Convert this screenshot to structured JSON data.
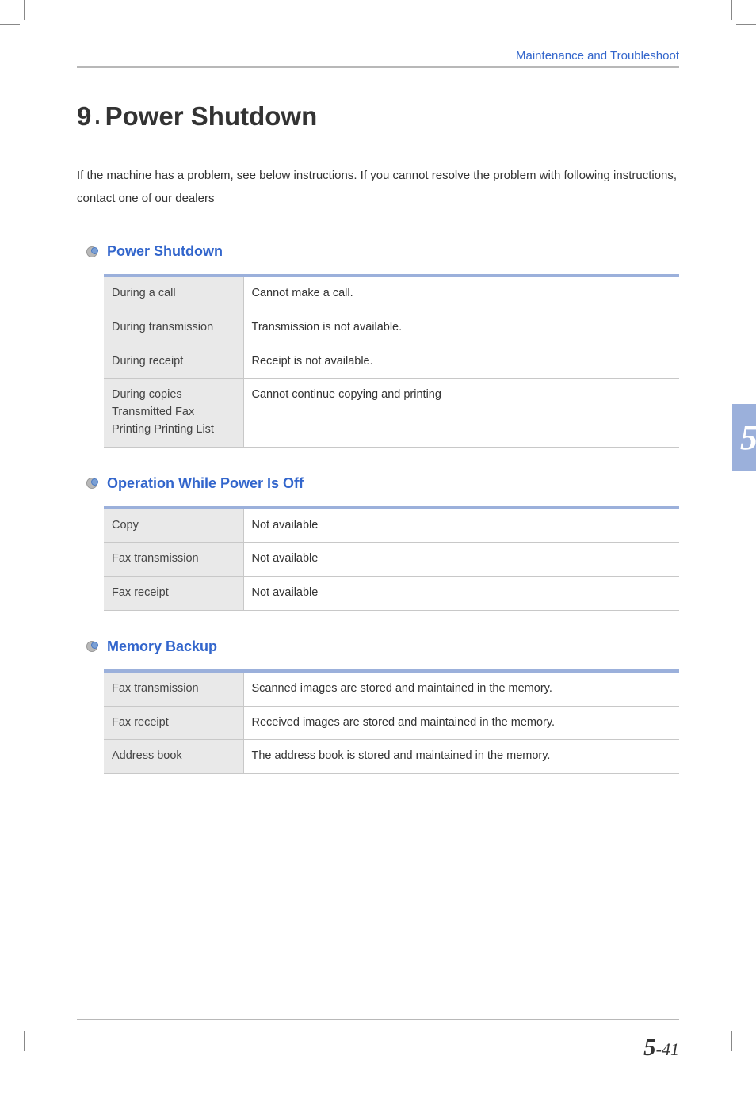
{
  "breadcrumb": "Maintenance and Troubleshoot",
  "heading": {
    "number": "9",
    "period": ".",
    "title": "Power Shutdown"
  },
  "intro": "If the machine has a problem, see below instructions. If you cannot resolve the problem with following instructions, contact one of our dealers",
  "sections": [
    {
      "title": "Power Shutdown",
      "rows": [
        {
          "label": "During a call",
          "value": "Cannot make a call."
        },
        {
          "label": "During transmission",
          "value": "Transmission is not available."
        },
        {
          "label": "During receipt",
          "value": "Receipt is not available."
        },
        {
          "label": "During copies\nTransmitted Fax\nPrinting Printing List",
          "value": "Cannot continue copying and printing"
        }
      ]
    },
    {
      "title": "Operation While Power Is Off",
      "rows": [
        {
          "label": "Copy",
          "value": "Not available"
        },
        {
          "label": "Fax transmission",
          "value": "Not available"
        },
        {
          "label": "Fax receipt",
          "value": "Not available"
        }
      ]
    },
    {
      "title": "Memory Backup",
      "rows": [
        {
          "label": "Fax transmission",
          "value": "Scanned images are stored and maintained in the memory."
        },
        {
          "label": "Fax receipt",
          "value": "Received images are stored and maintained in the memory."
        },
        {
          "label": "Address book",
          "value": "The address book is stored and maintained in the memory."
        }
      ]
    }
  ],
  "chapterTab": "5",
  "footer": {
    "chapter": "5",
    "separator": "-",
    "page": "41"
  },
  "colors": {
    "link_blue": "#3366cc",
    "tab_blue": "#9bb0db",
    "table_header_bg": "#e9e9e9",
    "rule_gray": "#b8b8b8",
    "text": "#333333"
  }
}
